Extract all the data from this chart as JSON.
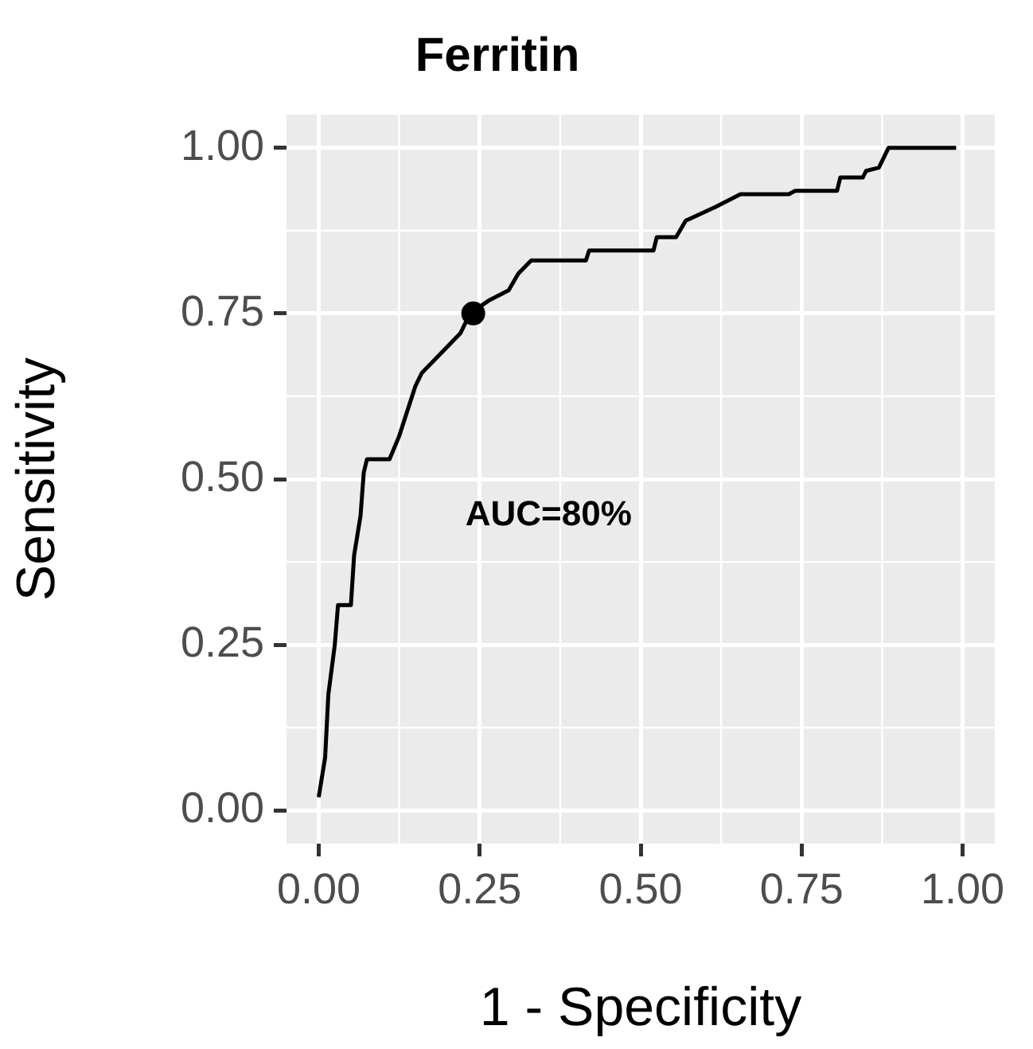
{
  "chart_data": {
    "type": "line",
    "title": "Ferritin",
    "xlabel": "1 - Specificity",
    "ylabel": "Sensitivity",
    "xlim": [
      -0.05,
      1.05
    ],
    "ylim": [
      -0.05,
      1.05
    ],
    "xticks": [
      {
        "value": 0,
        "label": "0.00"
      },
      {
        "value": 0.25,
        "label": "0.25"
      },
      {
        "value": 0.5,
        "label": "0.50"
      },
      {
        "value": 0.75,
        "label": "0.75"
      },
      {
        "value": 1,
        "label": "1.00"
      }
    ],
    "yticks": [
      {
        "value": 0,
        "label": "0.00"
      },
      {
        "value": 0.25,
        "label": "0.25"
      },
      {
        "value": 0.5,
        "label": "0.50"
      },
      {
        "value": 0.75,
        "label": "0.75"
      },
      {
        "value": 1,
        "label": "1.00"
      }
    ],
    "grid": true,
    "annotations": [
      "AUC=80%"
    ],
    "series": [
      {
        "color": "#000000",
        "x": [
          0,
          0.01,
          0.015,
          0.025,
          0.03,
          0.05,
          0.055,
          0.065,
          0.07,
          0.075,
          0.11,
          0.125,
          0.15,
          0.16,
          0.19,
          0.22,
          0.235,
          0.265,
          0.295,
          0.31,
          0.33,
          0.415,
          0.42,
          0.52,
          0.525,
          0.555,
          0.57,
          0.615,
          0.655,
          0.73,
          0.74,
          0.805,
          0.81,
          0.845,
          0.85,
          0.87,
          0.885,
          0.99
        ],
        "values": [
          0.02,
          0.08,
          0.175,
          0.25,
          0.31,
          0.31,
          0.385,
          0.445,
          0.51,
          0.53,
          0.53,
          0.565,
          0.64,
          0.66,
          0.69,
          0.72,
          0.75,
          0.77,
          0.785,
          0.81,
          0.83,
          0.83,
          0.845,
          0.845,
          0.865,
          0.865,
          0.89,
          0.91,
          0.93,
          0.93,
          0.935,
          0.935,
          0.955,
          0.955,
          0.965,
          0.97,
          1.0,
          1.0
        ]
      },
      {
        "type": "scatter",
        "color": "#000000",
        "x": [
          0.24
        ],
        "values": [
          0.75
        ]
      }
    ]
  }
}
